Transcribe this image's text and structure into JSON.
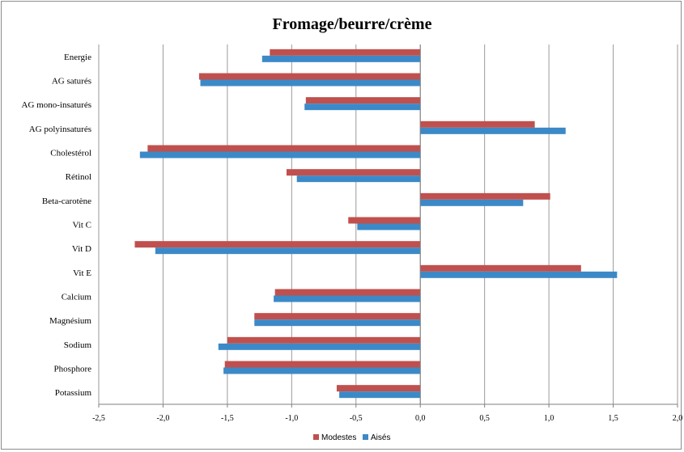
{
  "chart_data": {
    "type": "bar",
    "orientation": "horizontal",
    "title": "Fromage/beurre/crème",
    "xlabel": "",
    "ylabel": "",
    "xlim": [
      -2.5,
      2.0
    ],
    "x_ticks": [
      "-2,5",
      "-2,0",
      "-1,5",
      "-1,0",
      "-0,5",
      "0,0",
      "0,5",
      "1,0",
      "1,5",
      "2,0"
    ],
    "grid": "vertical",
    "legend_position": "bottom",
    "categories": [
      "Energie",
      "AG saturés",
      "AG mono-insaturés",
      "AG polyinsaturés",
      "Cholestérol",
      "Rétinol",
      "Beta-carotène",
      "Vit C",
      "Vit D",
      "Vit E",
      "Calcium",
      "Magnésium",
      "Sodium",
      "Phosphore",
      "Potassium"
    ],
    "series": [
      {
        "name": "Modestes",
        "color": "#c0504d",
        "values": [
          -1.17,
          -1.72,
          -0.89,
          0.89,
          -2.12,
          -1.04,
          1.01,
          -0.56,
          -2.22,
          1.25,
          -1.13,
          -1.29,
          -1.5,
          -1.52,
          -0.65
        ]
      },
      {
        "name": "Aisés",
        "color": "#3c89c7",
        "values": [
          -1.23,
          -1.71,
          -0.9,
          1.13,
          -2.18,
          -0.96,
          0.8,
          -0.49,
          -2.06,
          1.53,
          -1.14,
          -1.29,
          -1.57,
          -1.53,
          -0.63
        ]
      }
    ]
  }
}
